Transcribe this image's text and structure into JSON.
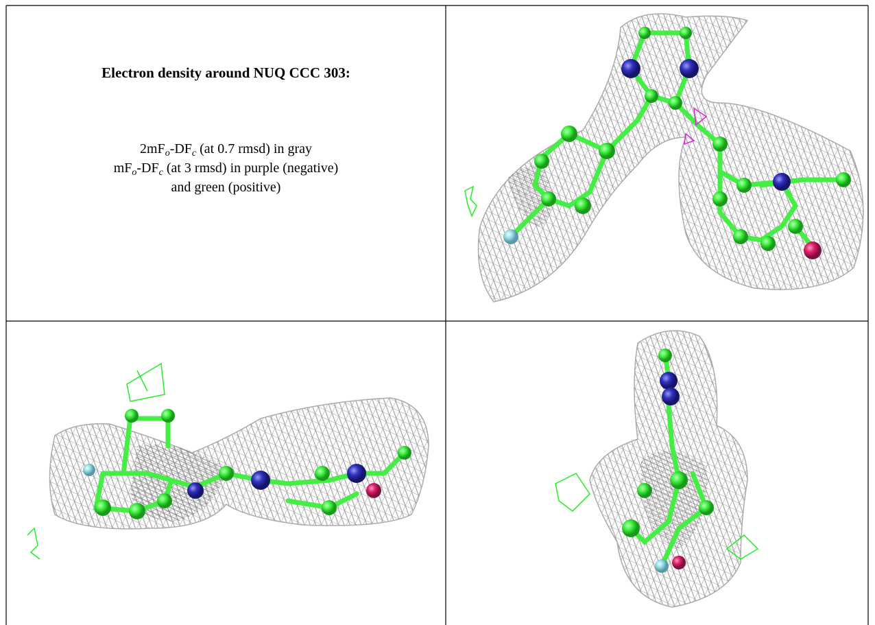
{
  "header": {
    "title": "Electron density around NUQ CCC 303:"
  },
  "caption": {
    "lines": [
      [
        "2mF",
        "o",
        "-DF",
        "c",
        " (at 0.7 rmsd) in gray"
      ],
      [
        "mF",
        "o",
        "-DF",
        "c",
        " (at 3 rmsd) in purple (negative)"
      ],
      [
        "and green (positive)"
      ]
    ]
  }
}
